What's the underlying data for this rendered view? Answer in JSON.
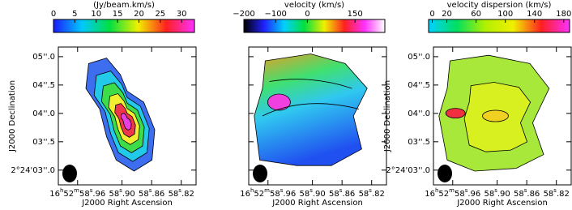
{
  "chart_data": [
    {
      "type": "image",
      "colorbar_label": "(Jy/beam.km/s)",
      "clim": [
        0,
        33
      ],
      "cticks": [
        0,
        5,
        10,
        15,
        20,
        25,
        30
      ],
      "colormap": [
        "#1a1aff",
        "#00c8ff",
        "#00e040",
        "#f0f000",
        "#ff2020",
        "#ff30ff"
      ],
      "xlabel": "J2000 Right Ascension",
      "ylabel": "J2000 Declination",
      "xlim": [
        58.986,
        58.8
      ],
      "xticks": [
        {
          "value": 58.96,
          "label": "16h52m58s.96"
        },
        {
          "value": 58.9,
          "label": "58s.90"
        },
        {
          "value": 58.86,
          "label": "58s.86"
        },
        {
          "value": 58.82,
          "label": "58s.82"
        }
      ],
      "ylim": [
        2.74,
        5.17
      ],
      "yticks": [
        {
          "value": 3,
          "label": "2°24'03''.0"
        },
        {
          "value": 3.5,
          "label": "03''.5"
        },
        {
          "value": 4,
          "label": "04''.0"
        },
        {
          "value": 4.5,
          "label": "04''.5"
        },
        {
          "value": 5,
          "label": "05''.0"
        }
      ]
    },
    {
      "type": "image",
      "colorbar_label": "velocity (km/s)",
      "clim": [
        -200,
        244
      ],
      "cticks": [
        {
          "value": -200,
          "label": "−200"
        },
        {
          "value": -100,
          "label": "−100"
        },
        0,
        150
      ],
      "colormap": [
        "#000000",
        "#2020ff",
        "#00d0ff",
        "#00e040",
        "#f0f000",
        "#ff2020",
        "#ff30ff",
        "#ffffff"
      ],
      "xlabel": "J2000 Right Ascension",
      "xlim": [
        58.986,
        58.8
      ],
      "xticks": [
        {
          "value": 58.96,
          "label": "16h52m58s.96"
        },
        {
          "value": 58.9,
          "label": "58s.90"
        },
        {
          "value": 58.86,
          "label": "58s.86"
        },
        {
          "value": 58.82,
          "label": "58s.82"
        }
      ],
      "ylim": [
        2.74,
        5.17
      ],
      "yticks": [
        3,
        3.5,
        4,
        4.5,
        5
      ],
      "ytick_labels": false
    },
    {
      "type": "image",
      "colorbar_label": "velocity dispersion (km/s)",
      "clim": [
        -5,
        188
      ],
      "cticks": [
        0,
        20,
        60,
        100,
        140,
        180
      ],
      "colormap": [
        "#00d0ff",
        "#00e060",
        "#b0f000",
        "#f0f000",
        "#ff2020",
        "#ff30ff"
      ],
      "xlabel": "J2000 Right Ascension",
      "ylabel": "J2000 Declination",
      "xlim": [
        58.986,
        58.8
      ],
      "xticks": [
        {
          "value": 58.96,
          "label": "16h52m58s.96"
        },
        {
          "value": 58.9,
          "label": "58s.90"
        },
        {
          "value": 58.86,
          "label": "58s.86"
        },
        {
          "value": 58.82,
          "label": "58s.82"
        }
      ],
      "ylim": [
        2.74,
        5.17
      ],
      "yticks": [
        {
          "value": 3,
          "label": "2°24'03''.0"
        },
        {
          "value": 3.5,
          "label": "03''.5"
        },
        {
          "value": 4,
          "label": "04''.0"
        },
        {
          "value": 4.5,
          "label": "04''.5"
        },
        {
          "value": 5,
          "label": "05''.0"
        }
      ]
    }
  ]
}
